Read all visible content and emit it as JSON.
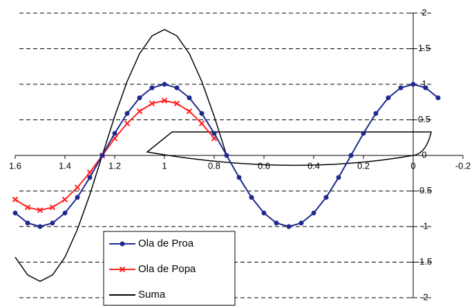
{
  "chart_data": {
    "type": "line",
    "x": [
      1.6,
      1.55,
      1.5,
      1.45,
      1.4,
      1.35,
      1.3,
      1.25,
      1.2,
      1.15,
      1.1,
      1.05,
      1,
      0.95,
      0.9,
      0.85,
      0.8,
      0.75,
      0.7,
      0.65,
      0.6,
      0.55,
      0.5,
      0.45,
      0.4,
      0.35,
      0.3,
      0.25,
      0.2,
      0.15,
      0.1,
      0.05,
      0,
      -0.05,
      -0.1
    ],
    "series": [
      {
        "name": "Ola de Proa",
        "color": "#1f2a8f",
        "marker": "circle",
        "values": [
          -0.81,
          -0.95,
          -1,
          -0.95,
          -0.81,
          -0.59,
          -0.31,
          0,
          0.31,
          0.59,
          0.81,
          0.95,
          1,
          0.95,
          0.81,
          0.59,
          0.31,
          0,
          -0.31,
          -0.59,
          -0.81,
          -0.95,
          -1,
          -0.95,
          -0.81,
          -0.59,
          -0.31,
          0,
          0.31,
          0.59,
          0.81,
          0.95,
          1,
          0.95,
          0.81
        ]
      },
      {
        "name": "Ola de Popa",
        "color": "#ff2020",
        "marker": "x",
        "values": [
          -0.62,
          -0.73,
          -0.77,
          -0.73,
          -0.62,
          -0.45,
          -0.24,
          0,
          0.24,
          0.45,
          0.62,
          0.73,
          0.77,
          0.73,
          0.62,
          0.45,
          0.24,
          null,
          null,
          null,
          null,
          null,
          null,
          null,
          null,
          null,
          null,
          null,
          null,
          null,
          null,
          null,
          null,
          null,
          null
        ]
      },
      {
        "name": "Suma",
        "color": "#000000",
        "marker": "none",
        "values": [
          -1.43,
          -1.68,
          -1.77,
          -1.68,
          -1.43,
          -1.04,
          -0.55,
          0,
          0.55,
          1.04,
          1.43,
          1.68,
          1.77,
          1.68,
          1.43,
          1.04,
          0.55,
          0,
          -0.31,
          -0.59,
          -0.81,
          -0.95,
          -1,
          -0.95,
          -0.81,
          -0.59,
          -0.31,
          0,
          0.31,
          0.59,
          0.81,
          0.95,
          1,
          0.95,
          0.81
        ]
      }
    ],
    "xlim": [
      1.6,
      -0.2
    ],
    "xticks": [
      1.6,
      1.4,
      1.2,
      1,
      0.8,
      0.6,
      0.4,
      0.2,
      0,
      -0.2
    ],
    "ylim": [
      -2,
      2
    ],
    "yticks": [
      2,
      1.5,
      1,
      0.5,
      0,
      -0.5,
      -1,
      -1.5,
      -2
    ],
    "grid": true,
    "legend": "lower left"
  }
}
